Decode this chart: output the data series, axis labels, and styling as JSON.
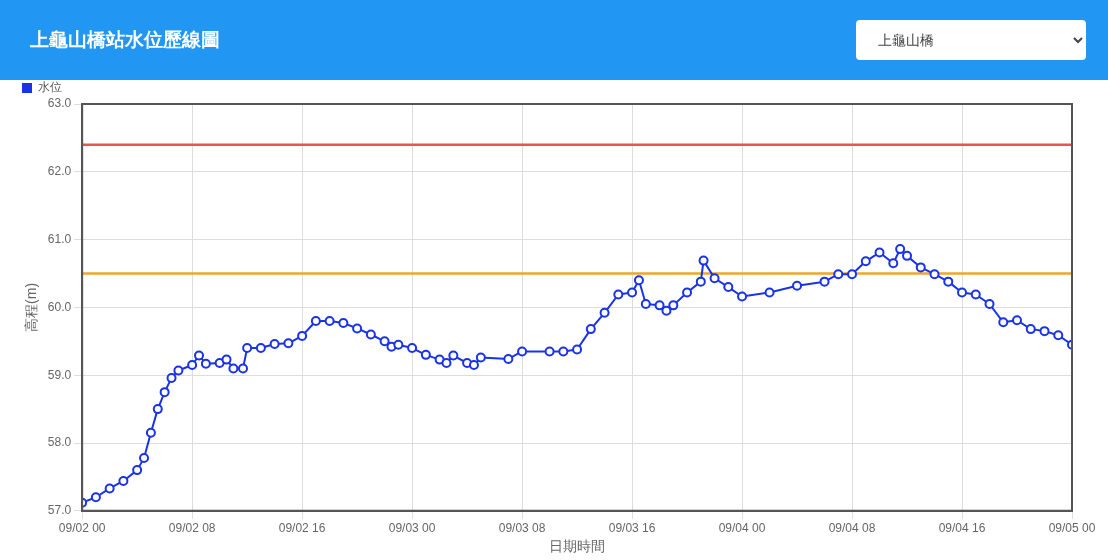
{
  "chart_data": {
    "type": "line",
    "title": "上龜山橋站水位歷線圖",
    "xlabel": "日期時間",
    "ylabel": "高程(m)",
    "annotations": [
      "上龜山橋"
    ],
    "series": [
      {
        "name": "水位",
        "color": "#1a33e6",
        "x": [
          "--09-02T00:00",
          "--09-02T01:00",
          "--09-02T02:00",
          "--09-02T03:00",
          "--09-02T04:00",
          "--09-02T04:30",
          "--09-02T05:00",
          "--09-02T05:30",
          "--09-02T06:00",
          "--09-02T06:30",
          "--09-02T07:00",
          "--09-02T08:00",
          "--09-02T08:30",
          "--09-02T09:00",
          "--09-02T10:00",
          "--09-02T10:30",
          "--09-02T11:00",
          "--09-02T11:42",
          "--09-02T12:00",
          "--09-02T13:00",
          "--09-02T14:00",
          "--09-02T15:00",
          "--09-02T16:00",
          "--09-02T17:00",
          "--09-02T18:00",
          "--09-02T19:00",
          "--09-02T20:00",
          "--09-02T21:00",
          "--09-02T22:00",
          "--09-02T22:30",
          "--09-02T23:00",
          "--09-03T00:00",
          "--09-03T01:00",
          "--09-03T02:00",
          "--09-03T02:30",
          "--09-03T03:00",
          "--09-03T04:00",
          "--09-03T04:30",
          "--09-03T05:00",
          "--09-03T07:00",
          "--09-03T08:00",
          "--09-03T10:00",
          "--09-03T11:00",
          "--09-03T12:00",
          "--09-03T13:00",
          "--09-03T14:00",
          "--09-03T15:00",
          "--09-03T16:00",
          "--09-03T16:30",
          "--09-03T17:00",
          "--09-03T18:00",
          "--09-03T18:30",
          "--09-03T19:00",
          "--09-03T20:00",
          "--09-03T21:00",
          "--09-03T21:12",
          "--09-03T22:00",
          "--09-03T23:00",
          "--09-04T00:00",
          "--09-04T02:00",
          "--09-04T04:00",
          "--09-04T06:00",
          "--09-04T07:00",
          "--09-04T08:00",
          "--09-04T09:00",
          "--09-04T10:00",
          "--09-04T11:00",
          "--09-04T11:30",
          "--09-04T12:00",
          "--09-04T13:00",
          "--09-04T14:00",
          "--09-04T15:00",
          "--09-04T16:00",
          "--09-04T17:00",
          "--09-04T18:00",
          "--09-04T19:00",
          "--09-04T20:00",
          "--09-04T21:00",
          "--09-04T22:00",
          "--09-04T23:00",
          "--09-05T00:00"
        ],
        "values": [
          57.12,
          57.2,
          57.33,
          57.44,
          57.6,
          57.78,
          58.15,
          58.5,
          58.75,
          58.96,
          59.07,
          59.15,
          59.29,
          59.17,
          59.18,
          59.23,
          59.1,
          59.1,
          59.4,
          59.4,
          59.46,
          59.47,
          59.58,
          59.8,
          59.8,
          59.77,
          59.69,
          59.6,
          59.5,
          59.42,
          59.45,
          59.4,
          59.3,
          59.23,
          59.18,
          59.29,
          59.18,
          59.15,
          59.26,
          59.24,
          59.35,
          59.35,
          59.35,
          59.38,
          59.68,
          59.92,
          60.19,
          60.22,
          60.4,
          60.05,
          60.03,
          59.95,
          60.03,
          60.22,
          60.38,
          60.69,
          60.43,
          60.3,
          60.16,
          60.22,
          60.32,
          60.38,
          60.49,
          60.49,
          60.68,
          60.81,
          60.65,
          60.86,
          60.76,
          60.59,
          60.49,
          60.38,
          60.22,
          60.19,
          60.05,
          59.78,
          59.81,
          59.68,
          59.65,
          59.59,
          59.45
        ]
      }
    ],
    "xlim": [
      "--09-02T00:00",
      "--09-05T00:00"
    ],
    "xticks": [
      {
        "value": "--09-02T00:00",
        "label": "09/02 00"
      },
      {
        "value": "--09-02T08:00",
        "label": "09/02 08"
      },
      {
        "value": "--09-02T16:00",
        "label": "09/02 16"
      },
      {
        "value": "--09-03T00:00",
        "label": "09/03 00"
      },
      {
        "value": "--09-03T08:00",
        "label": "09/03 08"
      },
      {
        "value": "--09-03T16:00",
        "label": "09/03 16"
      },
      {
        "value": "--09-04T00:00",
        "label": "09/04 00"
      },
      {
        "value": "--09-04T08:00",
        "label": "09/04 08"
      },
      {
        "value": "--09-04T16:00",
        "label": "09/04 16"
      },
      {
        "value": "--09-05T00:00",
        "label": "09/05 00"
      }
    ],
    "ylim": [
      57,
      63
    ],
    "yticks": [
      {
        "value": 57,
        "label": "57.0"
      },
      {
        "value": 58,
        "label": "58.0"
      },
      {
        "value": 59,
        "label": "59.0"
      },
      {
        "value": 60,
        "label": "60.0"
      },
      {
        "value": 61,
        "label": "61.0"
      },
      {
        "value": 62,
        "label": "62.0"
      },
      {
        "value": 63,
        "label": "63.0"
      }
    ],
    "ref_lines": [
      {
        "axis": "y",
        "value": 62.4,
        "color": "#e8554e"
      },
      {
        "axis": "y",
        "value": 60.5,
        "color": "#f0a42e"
      }
    ],
    "grid": true,
    "legend": "top left",
    "marker": "circle",
    "line_style": "solid"
  }
}
